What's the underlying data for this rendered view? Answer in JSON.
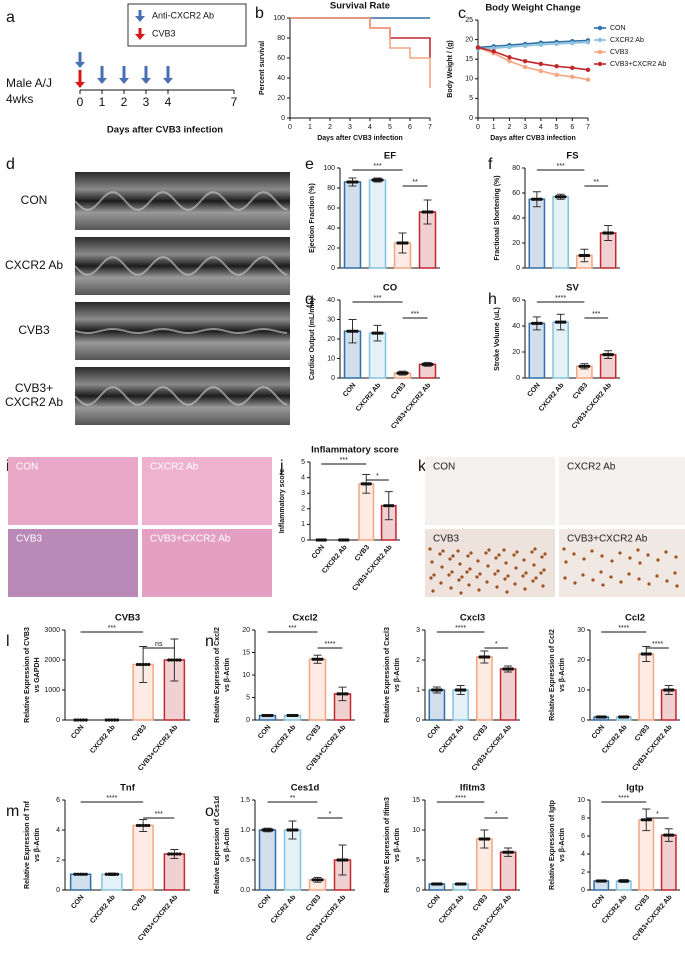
{
  "panels": [
    "a",
    "b",
    "c",
    "d",
    "e",
    "f",
    "g",
    "h",
    "i",
    "j",
    "k",
    "l",
    "n",
    "m",
    "o"
  ],
  "group_colors": [
    "#2f6ea7",
    "#86c2de",
    "#f4a582",
    "#c1272d"
  ],
  "timeline": {
    "legend": [
      {
        "label": "Anti-CXCR2 Ab",
        "color": "#4a6fb5"
      },
      {
        "label": "CVB3",
        "color": "#d7191c"
      }
    ],
    "subject": [
      "Male A/J",
      "4wks"
    ],
    "ticks": [
      0,
      1,
      2,
      3,
      4,
      7
    ],
    "injection_days": [
      0,
      1,
      2,
      3,
      4
    ],
    "infection_day": 0,
    "xlabel": "Days after CVB3 infection"
  },
  "echo_labels": [
    [
      "CON"
    ],
    [
      "CXCR2 Ab"
    ],
    [
      "CVB3"
    ],
    [
      "CVB3+",
      "CXCR2 Ab"
    ]
  ],
  "he_labels": [
    "CON",
    "CXCR2 Ab",
    "CVB3",
    "CVB3+CXCR2 Ab"
  ],
  "ihc_labels": [
    "CON",
    "CXCR2 Ab",
    "CVB3",
    "CVB3+CXCR2 Ab"
  ],
  "chart_data": [
    {
      "type": "line",
      "title": "Survival Rate",
      "ylabel": [
        "Percent survival"
      ],
      "xlabel": "Days after CVB3  infection",
      "step": true,
      "x": [
        0,
        1,
        2,
        3,
        4,
        5,
        6,
        7
      ],
      "xlim": [
        0,
        7
      ],
      "xticks": [
        0,
        1,
        2,
        3,
        4,
        5,
        6,
        7
      ],
      "ylim": [
        0,
        100
      ],
      "yticks": [
        0,
        20,
        40,
        60,
        80,
        100
      ],
      "series": [
        {
          "name": "CON",
          "color": "#2f6ea7",
          "values": [
            100,
            100,
            100,
            100,
            100,
            100,
            100,
            100
          ]
        },
        {
          "name": "CVB3+CXCR2 Ab",
          "color": "#c1272d",
          "values": [
            100,
            100,
            100,
            100,
            90,
            80,
            80,
            60
          ]
        },
        {
          "name": "CVB3",
          "color": "#f4a582",
          "values": [
            100,
            100,
            100,
            100,
            90,
            70,
            60,
            30
          ]
        }
      ]
    },
    {
      "type": "line",
      "title": "Body Weight Change",
      "ylabel": [
        "Body Weight / (g)"
      ],
      "xlabel": "Days after CVB3  infection",
      "markers": true,
      "legend": "right",
      "x": [
        0,
        1,
        2,
        3,
        4,
        5,
        6,
        7
      ],
      "xlim": [
        0,
        7
      ],
      "xticks": [
        0,
        1,
        2,
        3,
        4,
        5,
        6,
        7
      ],
      "ylim": [
        0,
        25
      ],
      "yticks": [
        0,
        5,
        10,
        15,
        20,
        25
      ],
      "series": [
        {
          "name": "CON",
          "color": "#2f6ea7",
          "values": [
            18,
            18.3,
            18.6,
            18.9,
            19.2,
            19.4,
            19.6,
            19.8
          ]
        },
        {
          "name": "CXCR2 Ab",
          "color": "#86c2de",
          "values": [
            17.6,
            17.8,
            18.1,
            18.4,
            18.7,
            18.9,
            19.1,
            19.3
          ]
        },
        {
          "name": "CVB3",
          "color": "#f4a582",
          "values": [
            18,
            16.5,
            14.5,
            13,
            12,
            11,
            10.5,
            9.8
          ]
        },
        {
          "name": "CVB3+CXCR2 Ab",
          "color": "#c1272d",
          "values": [
            18,
            17,
            15.5,
            14.5,
            13.8,
            13.2,
            12.8,
            12.3
          ]
        }
      ]
    },
    {
      "type": "bar",
      "title": "EF",
      "ylabel": [
        "Ejection Fraction (%)"
      ],
      "values": [
        86,
        88,
        25,
        56
      ],
      "errors": [
        4,
        2,
        10,
        12
      ],
      "ylim": [
        0,
        100
      ],
      "yticks": [
        0,
        20,
        40,
        60,
        80,
        100
      ],
      "comparisons": [
        {
          "label": "***",
          "from": 0,
          "to": 2
        },
        {
          "label": "**",
          "from": 2,
          "to": 3
        }
      ]
    },
    {
      "type": "bar",
      "title": "FS",
      "ylabel": [
        "Fractional Shortening (%)"
      ],
      "values": [
        55,
        57,
        10,
        28
      ],
      "errors": [
        6,
        2,
        5,
        6
      ],
      "ylim": [
        0,
        80
      ],
      "yticks": [
        0,
        20,
        40,
        60,
        80
      ],
      "comparisons": [
        {
          "label": "***",
          "from": 0,
          "to": 2
        },
        {
          "label": "**",
          "from": 2,
          "to": 3
        }
      ]
    },
    {
      "type": "bar",
      "title": "CO",
      "ylabel": [
        "Cardiac Output (mL/min)"
      ],
      "categories": [
        "CON",
        "CXCR2 Ab",
        "CVB3",
        "CVB3+CXCR2 Ab"
      ],
      "values": [
        24,
        23,
        2.5,
        7
      ],
      "errors": [
        6,
        4,
        1,
        1
      ],
      "ylim": [
        0,
        40
      ],
      "yticks": [
        0,
        10,
        20,
        30,
        40
      ],
      "comparisons": [
        {
          "label": "***",
          "from": 0,
          "to": 2
        },
        {
          "label": "***",
          "from": 2,
          "to": 3
        }
      ]
    },
    {
      "type": "bar",
      "title": "SV",
      "ylabel": [
        "Stroke Volume (uL)"
      ],
      "categories": [
        "CON",
        "CXCR2 Ab",
        "CVB3",
        "CVB3+CXCR2 Ab"
      ],
      "values": [
        42,
        43,
        9,
        18
      ],
      "errors": [
        5,
        6,
        2,
        3
      ],
      "ylim": [
        0,
        60
      ],
      "yticks": [
        0,
        20,
        40,
        60
      ],
      "comparisons": [
        {
          "label": "****",
          "from": 0,
          "to": 2
        },
        {
          "label": "***",
          "from": 2,
          "to": 3
        }
      ]
    },
    {
      "type": "bar",
      "title": "Inflammatory score",
      "ylabel": [
        "Inflammatory score"
      ],
      "categories": [
        "CON",
        "CXCR2 Ab",
        "CVB3",
        "CVB3+CXCR2 Ab"
      ],
      "values": [
        0,
        0,
        3.6,
        2.2
      ],
      "errors": [
        0,
        0,
        0.6,
        0.9
      ],
      "ylim": [
        0,
        5
      ],
      "yticks": [
        0,
        1,
        2,
        3,
        4,
        5
      ],
      "comparisons": [
        {
          "label": "***",
          "from": 0,
          "to": 2
        },
        {
          "label": "*",
          "from": 2,
          "to": 3
        }
      ]
    },
    {
      "type": "bar",
      "title": "CVB3",
      "ylabel": [
        "Relative Expression of CVB3",
        "vs GAPDH"
      ],
      "categories": [
        "CON",
        "CXCR2 Ab",
        "CVB3",
        "CVB3+CXCR2 Ab"
      ],
      "values": [
        0,
        0,
        1850,
        2000
      ],
      "errors": [
        0,
        0,
        600,
        700
      ],
      "ylim": [
        0,
        3000
      ],
      "yticks": [
        0,
        1000,
        2000,
        3000
      ],
      "comparisons": [
        {
          "label": "***",
          "from": 0,
          "to": 2
        },
        {
          "label": "ns",
          "from": 2,
          "to": 3
        }
      ]
    },
    {
      "type": "bar",
      "title": "Cxcl2",
      "ylabel": [
        "Relative Expression of Cxcl2",
        "vs β-Actin"
      ],
      "categories": [
        "CON",
        "CXCR2 Ab",
        "CVB3",
        "CVB3+CXCR2 Ab"
      ],
      "values": [
        1,
        1,
        13.5,
        5.8
      ],
      "errors": [
        0.1,
        0.1,
        0.9,
        1.5
      ],
      "ylim": [
        0,
        20
      ],
      "yticks": [
        0,
        5,
        10,
        15,
        20
      ],
      "comparisons": [
        {
          "label": "***",
          "from": 0,
          "to": 2
        },
        {
          "label": "****",
          "from": 2,
          "to": 3
        }
      ]
    },
    {
      "type": "bar",
      "title": "Cxcl3",
      "ylabel": [
        "Relative Expression of Cxcl3",
        "vs β-Actin"
      ],
      "categories": [
        "CON",
        "CXCR2 Ab",
        "CVB3",
        "CVB3+CXCR2 Ab"
      ],
      "values": [
        1,
        1,
        2.1,
        1.7
      ],
      "errors": [
        0.1,
        0.15,
        0.2,
        0.1
      ],
      "ylim": [
        0,
        3
      ],
      "yticks": [
        0,
        1,
        2,
        3
      ],
      "comparisons": [
        {
          "label": "****",
          "from": 0,
          "to": 2
        },
        {
          "label": "*",
          "from": 2,
          "to": 3
        }
      ]
    },
    {
      "type": "bar",
      "title": "Ccl2",
      "ylabel": [
        "Relative Expression of Ccl2",
        "vs β-Actin"
      ],
      "categories": [
        "CON",
        "CXCR2 Ab",
        "CVB3",
        "CVB3+CXCR2 Ab"
      ],
      "values": [
        1,
        1,
        22,
        10
      ],
      "errors": [
        0.1,
        0.1,
        2.5,
        1.5
      ],
      "ylim": [
        0,
        30
      ],
      "yticks": [
        0,
        10,
        20,
        30
      ],
      "comparisons": [
        {
          "label": "****",
          "from": 0,
          "to": 2
        },
        {
          "label": "****",
          "from": 2,
          "to": 3
        }
      ]
    },
    {
      "type": "bar",
      "title": "Tnf",
      "ylabel": [
        "Relative Expression of Tnf",
        "vs β-Actin"
      ],
      "categories": [
        "CON",
        "CXCR2 Ab",
        "CVB3",
        "CVB3+CXCR2 Ab"
      ],
      "values": [
        1.05,
        1.05,
        4.3,
        2.4
      ],
      "errors": [
        0.05,
        0.08,
        0.4,
        0.3
      ],
      "ylim": [
        0,
        6
      ],
      "yticks": [
        0,
        2,
        4,
        6
      ],
      "comparisons": [
        {
          "label": "****",
          "from": 0,
          "to": 2
        },
        {
          "label": "***",
          "from": 2,
          "to": 3
        }
      ]
    },
    {
      "type": "bar",
      "title": "Ces1d",
      "ylabel": [
        "Relative Expression of Ces1d",
        "vs β-Actin"
      ],
      "categories": [
        "CON",
        "CXCR2 Ab",
        "CVB3",
        "CVB3+CXCR2 Ab"
      ],
      "values": [
        1,
        1,
        0.17,
        0.5
      ],
      "errors": [
        0.03,
        0.15,
        0.04,
        0.25
      ],
      "ylim": [
        0,
        1.5
      ],
      "yticks": [
        {
          "value": 0,
          "label": "0.0"
        },
        0.5,
        {
          "value": 1,
          "label": "1.0"
        },
        1.5
      ],
      "comparisons": [
        {
          "label": "**",
          "from": 0,
          "to": 2
        },
        {
          "label": "*",
          "from": 2,
          "to": 3
        }
      ]
    },
    {
      "type": "bar",
      "title": "Ifitm3",
      "ylabel": [
        "Relative Expression of Ifitm3",
        "vs β-Actin"
      ],
      "categories": [
        "CON",
        "CXCR2 Ab",
        "CVB3",
        "CVB3+CXCR2 Ab"
      ],
      "values": [
        1,
        1,
        8.5,
        6.3
      ],
      "errors": [
        0.1,
        0.1,
        1.5,
        0.7
      ],
      "ylim": [
        0,
        15
      ],
      "yticks": [
        0,
        5,
        10,
        15
      ],
      "comparisons": [
        {
          "label": "****",
          "from": 0,
          "to": 2
        },
        {
          "label": "*",
          "from": 2,
          "to": 3
        }
      ]
    },
    {
      "type": "bar",
      "title": "Igtp",
      "ylabel": [
        "Relative Expression of Igtp",
        "vs β-Actin"
      ],
      "categories": [
        "CON",
        "CXCR2 Ab",
        "CVB3",
        "CVB3+CXCR2 Ab"
      ],
      "values": [
        1,
        1,
        7.8,
        6.1
      ],
      "errors": [
        0.05,
        0.15,
        1.2,
        0.7
      ],
      "ylim": [
        0,
        10
      ],
      "yticks": [
        0,
        2,
        4,
        6,
        8,
        10
      ],
      "comparisons": [
        {
          "label": "****",
          "from": 0,
          "to": 2
        },
        {
          "label": "*",
          "from": 2,
          "to": 3
        }
      ]
    }
  ]
}
